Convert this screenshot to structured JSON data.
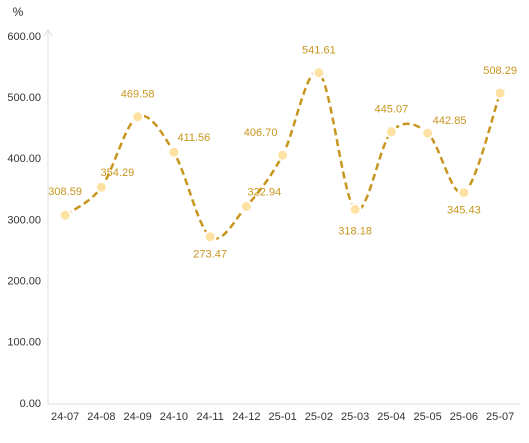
{
  "chart_data": {
    "type": "line",
    "y_label": "%",
    "categories": [
      "24-07",
      "24-08",
      "24-09",
      "24-10",
      "24-11",
      "24-12",
      "25-01",
      "25-02",
      "25-03",
      "25-04",
      "25-05",
      "25-06",
      "25-07"
    ],
    "values": [
      308.59,
      354.29,
      469.58,
      411.56,
      273.47,
      322.94,
      406.7,
      541.61,
      318.18,
      445.07,
      442.85,
      345.43,
      508.29
    ],
    "value_labels": [
      "308.59",
      "354.29",
      "469.58",
      "411.56",
      "273.47",
      "322.94",
      "406.70",
      "541.61",
      "318.18",
      "445.07",
      "442.85",
      "345.43",
      "508.29"
    ],
    "color": "#c8961e",
    "marker_color": "#fde2a3",
    "ylim": [
      0,
      600
    ],
    "yticks": [
      {
        "value": 0,
        "label": "0.00"
      },
      {
        "value": 100,
        "label": "100.00"
      },
      {
        "value": 200,
        "label": "200.00"
      },
      {
        "value": 300,
        "label": "300.00"
      },
      {
        "value": 400,
        "label": "400.00"
      },
      {
        "value": 500,
        "label": "500.00"
      },
      {
        "value": 600,
        "label": "600.00"
      }
    ],
    "grid": false,
    "smooth": true,
    "dashed": true
  }
}
